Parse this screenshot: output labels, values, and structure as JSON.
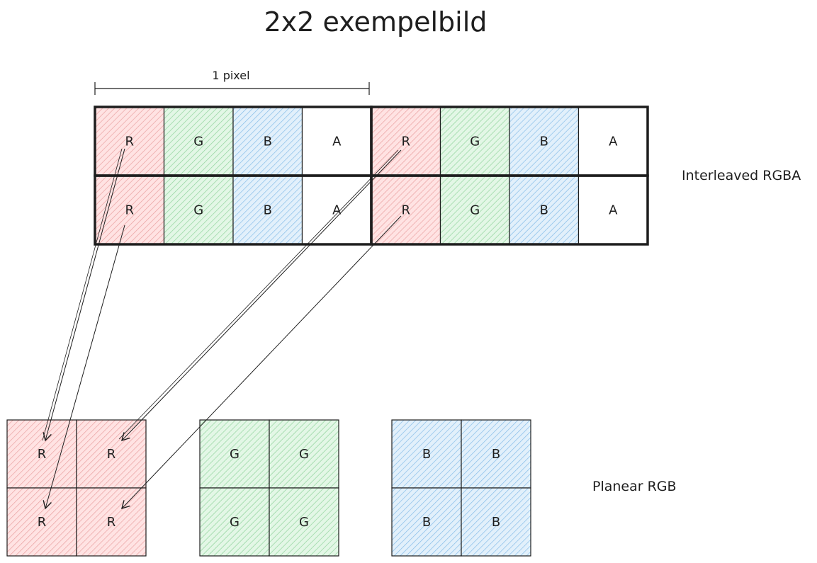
{
  "title": "2x2 exempelbild",
  "pixel_label": "1 pixel",
  "interleaved": {
    "label": "Interleaved RGBA",
    "rows": [
      [
        "R",
        "G",
        "B",
        "A",
        "R",
        "G",
        "B",
        "A"
      ],
      [
        "R",
        "G",
        "B",
        "A",
        "R",
        "G",
        "B",
        "A"
      ]
    ]
  },
  "planar": {
    "label": "Planear RGB",
    "planes": [
      {
        "channel": "R",
        "cells": [
          "R",
          "R",
          "R",
          "R"
        ]
      },
      {
        "channel": "G",
        "cells": [
          "G",
          "G",
          "G",
          "G"
        ]
      },
      {
        "channel": "B",
        "cells": [
          "B",
          "B",
          "B",
          "B"
        ]
      }
    ]
  },
  "colors": {
    "R": "#ffc9c9",
    "G": "#b2f2bb",
    "B": "#a5d8ff",
    "A": "#ffffff",
    "stroke": "#1e1e1e",
    "hatch_R": "#e8a0a0",
    "hatch_G": "#8fd49b",
    "hatch_B": "#7fb8e6"
  }
}
